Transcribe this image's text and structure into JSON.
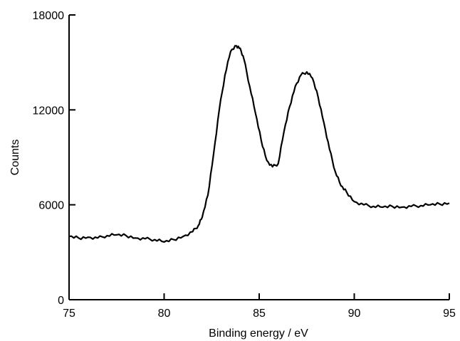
{
  "chart_data": {
    "type": "line",
    "title": "",
    "xlabel": "Binding energy / eV",
    "ylabel": "Counts",
    "xlim": [
      75,
      95
    ],
    "ylim": [
      0,
      18000
    ],
    "xticks": [
      75,
      80,
      85,
      90,
      95
    ],
    "yticks": [
      0,
      6000,
      12000,
      18000
    ],
    "grid": false,
    "series": [
      {
        "color": "#000000",
        "x": [
          75.0,
          75.5,
          76.0,
          76.5,
          77.0,
          77.5,
          78.0,
          78.5,
          79.0,
          79.5,
          80.0,
          80.5,
          81.0,
          81.5,
          81.8,
          82.0,
          82.3,
          82.6,
          82.9,
          83.2,
          83.5,
          83.8,
          84.0,
          84.2,
          84.5,
          84.8,
          85.1,
          85.4,
          85.7,
          86.0,
          86.3,
          86.6,
          86.9,
          87.2,
          87.5,
          87.8,
          88.1,
          88.4,
          88.7,
          89.0,
          89.3,
          89.6,
          90.0,
          90.5,
          91.0,
          91.5,
          92.0,
          92.5,
          93.0,
          93.5,
          94.0,
          94.5,
          95.0
        ],
        "y": [
          4000,
          3900,
          3950,
          3900,
          4050,
          4100,
          4050,
          3900,
          3850,
          3800,
          3650,
          3800,
          4000,
          4300,
          4700,
          5200,
          6600,
          9200,
          12000,
          14200,
          15700,
          16050,
          15900,
          15200,
          13500,
          11800,
          10100,
          8800,
          8400,
          8600,
          10600,
          12200,
          13500,
          14200,
          14400,
          14000,
          12800,
          11200,
          9500,
          8100,
          7200,
          6800,
          6200,
          6000,
          5900,
          5850,
          5900,
          5850,
          5900,
          5950,
          6000,
          6050,
          6100
        ]
      }
    ]
  }
}
